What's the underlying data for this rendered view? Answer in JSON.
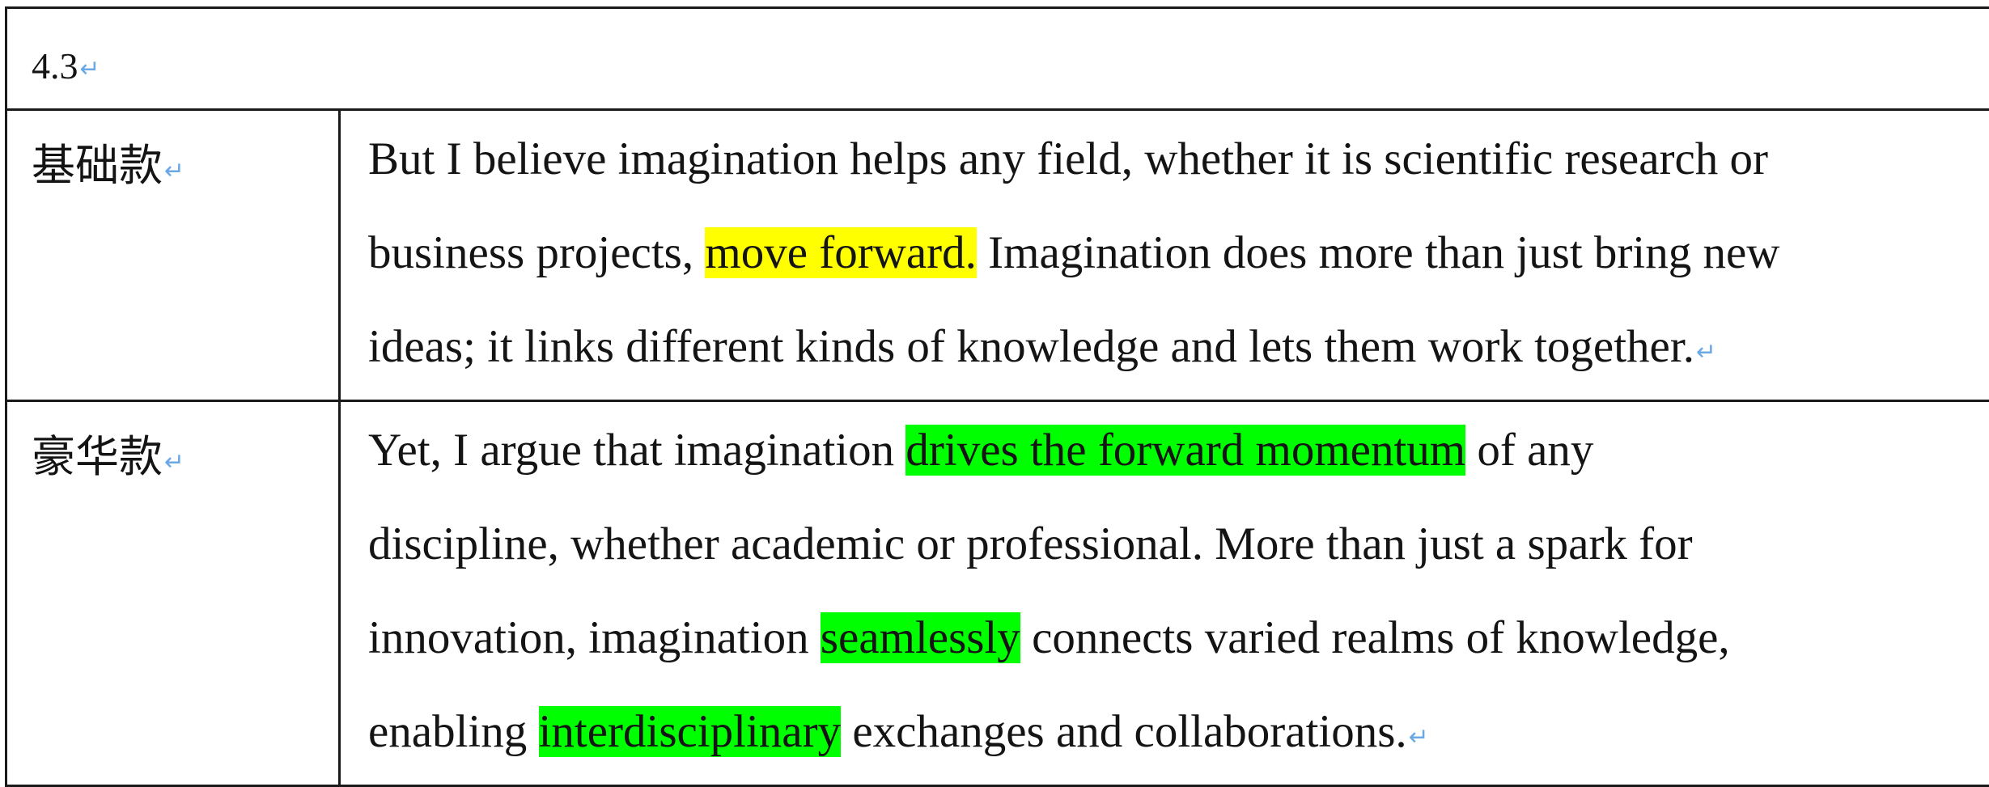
{
  "header": {
    "section": "4.3"
  },
  "paragraph_mark": "↵",
  "rows": [
    {
      "label": "基础款",
      "lines": [
        [
          {
            "text": "But I believe imagination helps any field, whether it is scientific research or",
            "hl": ""
          }
        ],
        [
          {
            "text": "business projects, ",
            "hl": ""
          },
          {
            "text": "move forward.",
            "hl": "yellow"
          },
          {
            "text": " Imagination does more than just bring new",
            "hl": ""
          }
        ],
        [
          {
            "text": "ideas; it links different kinds of knowledge and lets them work together.",
            "hl": ""
          }
        ]
      ]
    },
    {
      "label": "豪华款",
      "lines": [
        [
          {
            "text": "Yet, I argue that imagination ",
            "hl": ""
          },
          {
            "text": "drives the forward momentum",
            "hl": "green"
          },
          {
            "text": " of any",
            "hl": ""
          }
        ],
        [
          {
            "text": "discipline, whether academic or professional. More than just a spark for",
            "hl": ""
          }
        ],
        [
          {
            "text": "innovation, imagination ",
            "hl": ""
          },
          {
            "text": "seamlessly",
            "hl": "green"
          },
          {
            "text": " connects varied realms of knowledge,",
            "hl": ""
          }
        ],
        [
          {
            "text": "enabling ",
            "hl": ""
          },
          {
            "text": "interdisciplinary",
            "hl": "green"
          },
          {
            "text": " exchanges and collaborations.",
            "hl": ""
          }
        ]
      ]
    }
  ],
  "colors": {
    "highlight_yellow": "#ffff00",
    "highlight_green": "#00ff00",
    "paragraph_mark": "#6aa8e6"
  }
}
